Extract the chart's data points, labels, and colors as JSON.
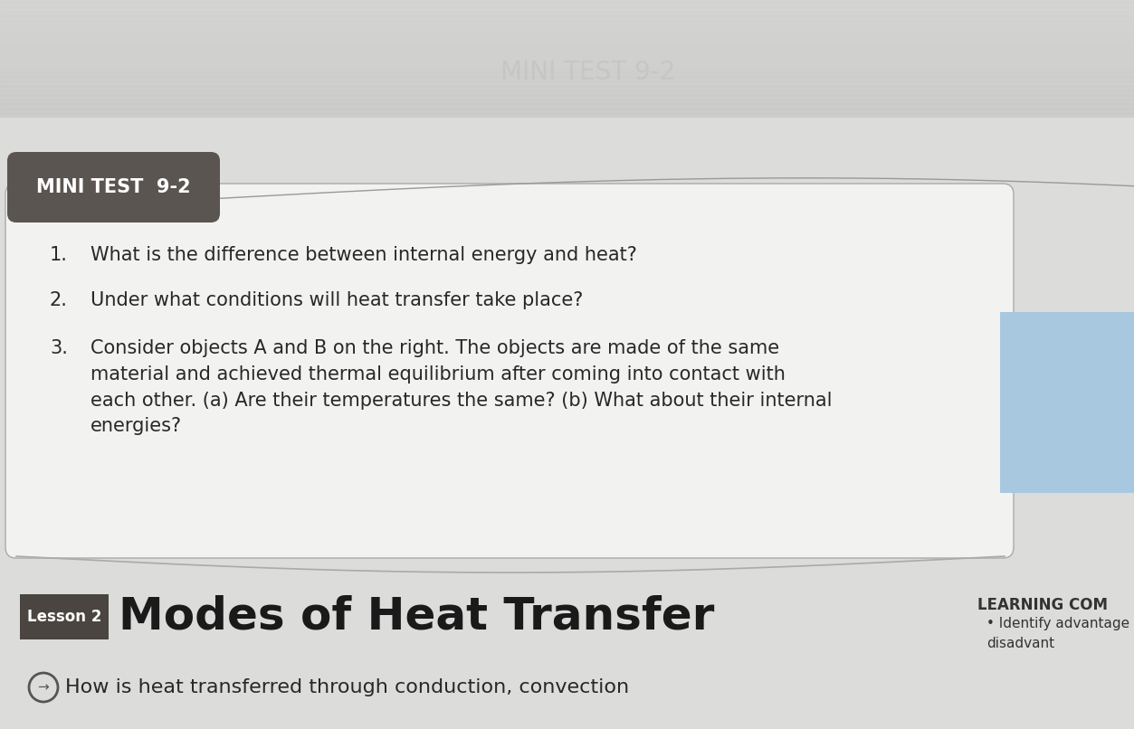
{
  "page_bg_top": "#c8c8c8",
  "page_bg_main": "#d8d8d8",
  "white_box_bg": "#f2f2f0",
  "white_box_border": "#aaaaaa",
  "mini_test_label": "MINI TEST  9-2",
  "mini_test_label_bg": "#5a5550",
  "mini_test_label_fg": "#ffffff",
  "questions": [
    "What is the difference between internal energy and heat?",
    "Under what conditions will heat transfer take place?",
    "Consider objects A and B on the right. The objects are made of the same\nmaterial and achieved thermal equilibrium after coming into contact with\neach other. (a) Are their temperatures the same? (b) What about their internal\nenergies?"
  ],
  "question_numbers": [
    "1.",
    "2.",
    "3."
  ],
  "lesson_label": "Lesson 2",
  "lesson_label_bg": "#4a4540",
  "lesson_label_fg": "#ffffff",
  "lesson_title": "Modes of Heat Transfer",
  "lesson_title_color": "#1a1a1a",
  "learning_com_label": "LEARNING COM",
  "learning_com_color": "#333333",
  "bullet_text": "Identify advantage",
  "bottom_text": "How is heat transferred through conduction, convection",
  "blue_box_color": "#a8c8e0",
  "curve_line_color": "#999999",
  "bottom_separator_color": "#aaaaaa",
  "watermark_text": "MINI TEST 9-2",
  "watermark_color": "#c0c0c0"
}
